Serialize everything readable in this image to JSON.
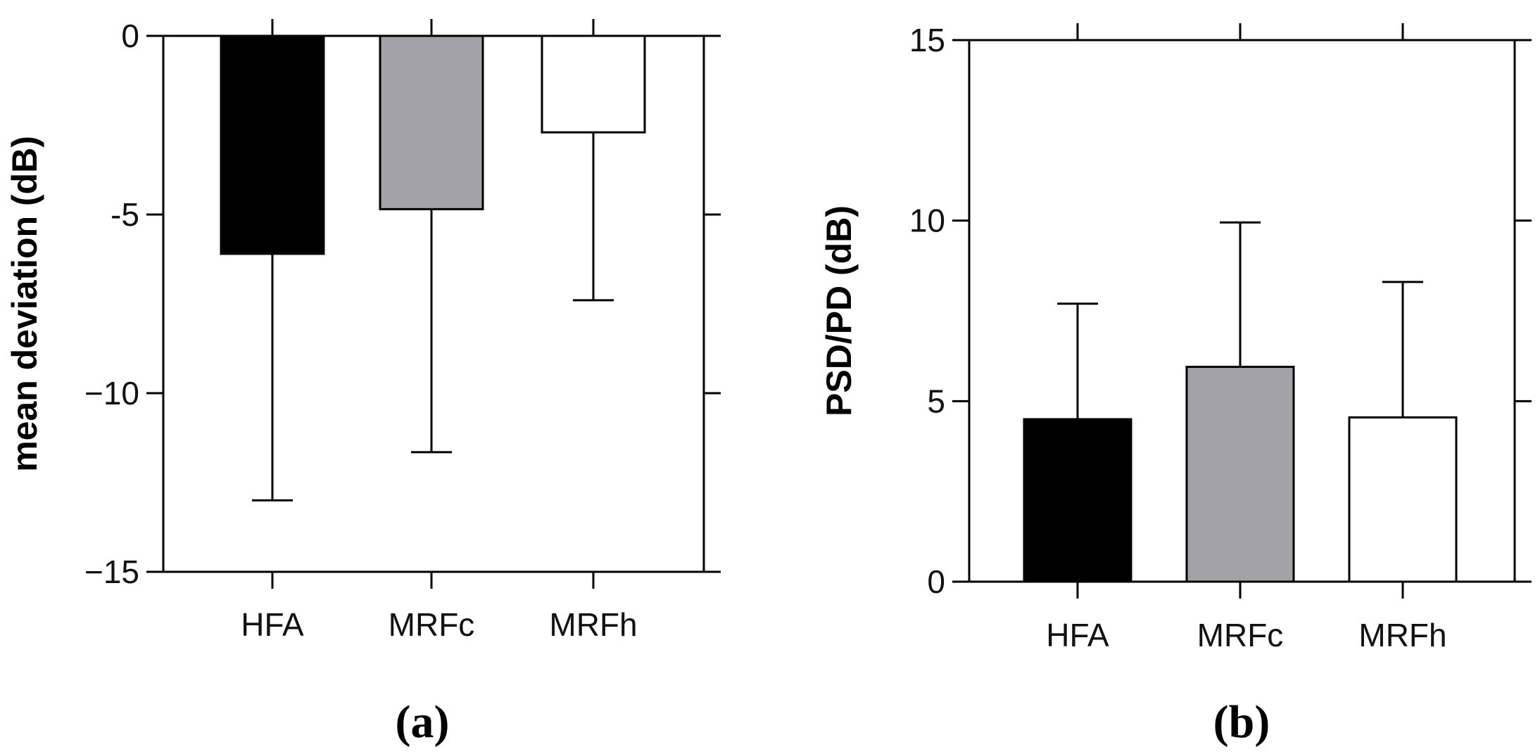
{
  "chart_data": [
    {
      "type": "bar",
      "panel_label": "(a)",
      "ylabel": "mean deviation (dB)",
      "categories": [
        "HFA",
        "MRFc",
        "MRFh"
      ],
      "values": [
        -6.1,
        -4.85,
        -2.7
      ],
      "error": [
        6.9,
        6.8,
        4.7
      ],
      "ylim": [
        -15,
        0
      ],
      "yticks": [
        0,
        -5,
        -10,
        -15
      ],
      "ytick_labels": [
        "0",
        "-5",
        "−10",
        "−15"
      ],
      "bar_colors": [
        "#000000",
        "#a3a2a7",
        "#ffffff"
      ]
    },
    {
      "type": "bar",
      "panel_label": "(b)",
      "ylabel": "PSD/PD (dB)",
      "categories": [
        "HFA",
        "MRFc",
        "MRFh"
      ],
      "values": [
        4.5,
        5.95,
        4.55
      ],
      "error": [
        3.2,
        4.0,
        3.75
      ],
      "ylim": [
        0,
        15
      ],
      "yticks": [
        0,
        5,
        10,
        15
      ],
      "ytick_labels": [
        "0",
        "5",
        "10",
        "15"
      ],
      "bar_colors": [
        "#000000",
        "#a3a2a7",
        "#ffffff"
      ]
    }
  ]
}
